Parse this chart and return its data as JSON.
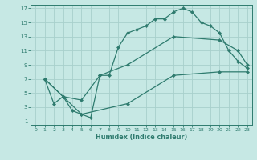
{
  "xlabel": "Humidex (Indice chaleur)",
  "bg_color": "#c6e8e4",
  "line_color": "#2e7b6e",
  "grid_color": "#a8d0cc",
  "xlim": [
    -0.5,
    23.5
  ],
  "ylim": [
    0.5,
    17.5
  ],
  "xticks": [
    0,
    1,
    2,
    3,
    4,
    5,
    6,
    7,
    8,
    9,
    10,
    11,
    12,
    13,
    14,
    15,
    16,
    17,
    18,
    19,
    20,
    21,
    22,
    23
  ],
  "yticks": [
    1,
    3,
    5,
    7,
    9,
    11,
    13,
    15,
    17
  ],
  "line1_x": [
    1,
    2,
    3,
    4,
    5,
    6,
    7,
    8,
    9,
    10,
    11,
    12,
    13,
    14,
    15,
    16,
    17,
    18,
    19,
    20,
    21,
    22,
    23
  ],
  "line1_y": [
    7,
    3.5,
    4.5,
    2.5,
    2.0,
    1.5,
    7.5,
    7.5,
    11.5,
    13.5,
    14.0,
    14.5,
    15.5,
    15.5,
    16.5,
    17.0,
    16.5,
    15.0,
    14.5,
    13.5,
    11.0,
    9.5,
    8.5
  ],
  "line2_x": [
    1,
    3,
    5,
    7,
    10,
    15,
    20,
    22,
    23
  ],
  "line2_y": [
    7,
    4.5,
    4.0,
    7.5,
    9.0,
    13.0,
    12.5,
    11.0,
    9.0
  ],
  "line3_x": [
    1,
    5,
    10,
    15,
    20,
    23
  ],
  "line3_y": [
    7,
    2.0,
    3.5,
    7.5,
    8.0,
    8.0
  ]
}
